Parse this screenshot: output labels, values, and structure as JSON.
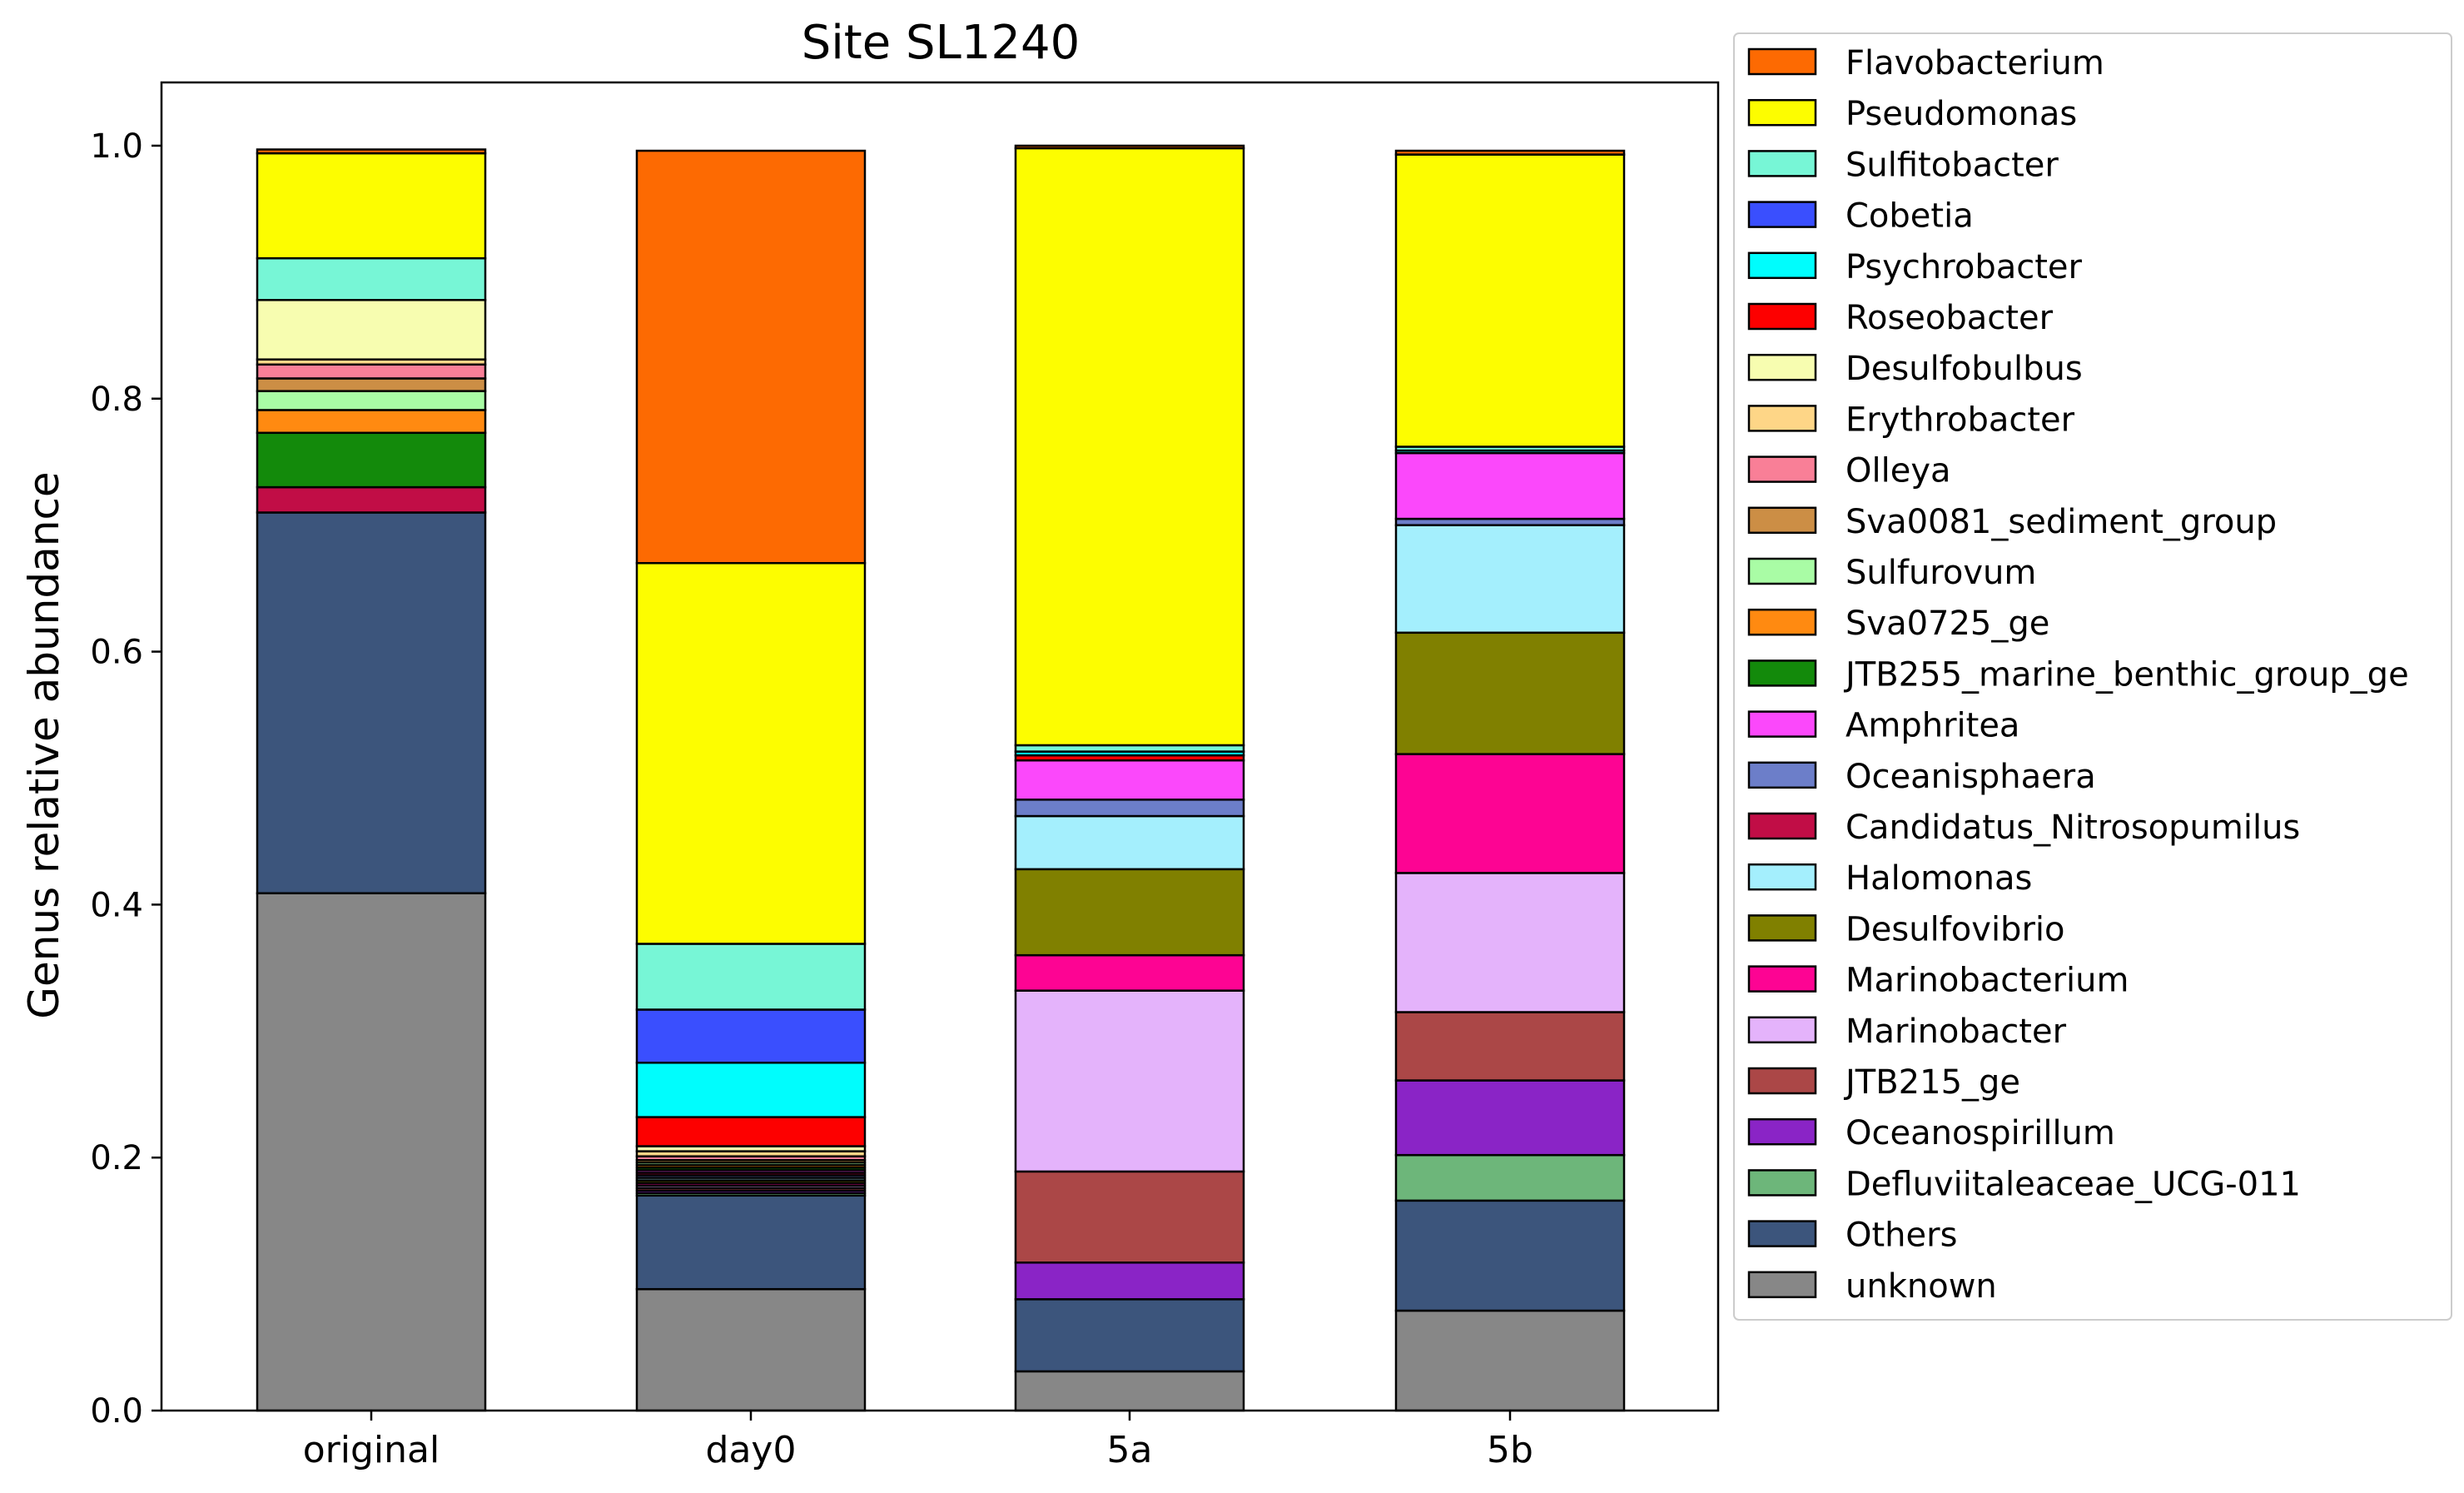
{
  "chart_data": {
    "type": "bar",
    "stacked": true,
    "title": "Site SL1240",
    "xlabel": "",
    "ylabel": "Genus relative abundance",
    "ylim": [
      0,
      1.05
    ],
    "yticks": [
      "0.0",
      "0.2",
      "0.4",
      "0.6",
      "0.8",
      "1.0"
    ],
    "categories": [
      "original",
      "day0",
      "5a",
      "5b"
    ],
    "legend_position": "outside-right",
    "grid": false,
    "series": [
      {
        "name": "unknown",
        "color": "#878787",
        "values": [
          0.409,
          0.096,
          0.031,
          0.079
        ]
      },
      {
        "name": "Others",
        "color": "#3c557c",
        "values": [
          0.301,
          0.074,
          0.057,
          0.087
        ]
      },
      {
        "name": "Defluviitaleaceae_UCG-011",
        "color": "#6db67a",
        "values": [
          0.0,
          0.002,
          0.0,
          0.036
        ]
      },
      {
        "name": "Oceanospirillum",
        "color": "#8a24c6",
        "values": [
          0.0,
          0.002,
          0.029,
          0.059
        ]
      },
      {
        "name": "JTB215_ge",
        "color": "#ab4747",
        "values": [
          0.0,
          0.002,
          0.072,
          0.054
        ]
      },
      {
        "name": "Marinobacter",
        "color": "#e4b3fb",
        "values": [
          0.0,
          0.002,
          0.143,
          0.11
        ]
      },
      {
        "name": "Marinobacterium",
        "color": "#fd0493",
        "values": [
          0.0,
          0.002,
          0.028,
          0.094
        ]
      },
      {
        "name": "Desulfovibrio",
        "color": "#808000",
        "values": [
          0.0,
          0.002,
          0.068,
          0.096
        ]
      },
      {
        "name": "Halomonas",
        "color": "#a4effd",
        "values": [
          0.0,
          0.002,
          0.042,
          0.085
        ]
      },
      {
        "name": "Oceanisphaera",
        "color": "#6c7ec9",
        "values": [
          0.0,
          0.002,
          0.013,
          0.005
        ]
      },
      {
        "name": "Candidatus_Nitrosopumilus",
        "color": "#c10d46",
        "values": [
          0.02,
          0.002,
          0.0,
          0.0
        ]
      },
      {
        "name": "Amphritea",
        "color": "#fb48fb",
        "values": [
          0.0,
          0.002,
          0.031,
          0.052
        ]
      },
      {
        "name": "JTB255_marine_benthic_group_ge",
        "color": "#138a0b",
        "values": [
          0.043,
          0.002,
          0.0,
          0.0
        ]
      },
      {
        "name": "Sva0725_ge",
        "color": "#ff8a11",
        "values": [
          0.018,
          0.002,
          0.0,
          0.0
        ]
      },
      {
        "name": "Sulfurovum",
        "color": "#a9fca5",
        "values": [
          0.015,
          0.002,
          0.0,
          0.0
        ]
      },
      {
        "name": "Sva0081_sediment_group",
        "color": "#cc8e45",
        "values": [
          0.01,
          0.002,
          0.0,
          0.0
        ]
      },
      {
        "name": "Olleya",
        "color": "#f97f97",
        "values": [
          0.011,
          0.003,
          0.0,
          0.0
        ]
      },
      {
        "name": "Erythrobacter",
        "color": "#fed687",
        "values": [
          0.004,
          0.004,
          0.0,
          0.0
        ]
      },
      {
        "name": "Desulfobulbus",
        "color": "#f7fdb0",
        "values": [
          0.047,
          0.004,
          0.0,
          0.0
        ]
      },
      {
        "name": "Roseobacter",
        "color": "#fd0000",
        "values": [
          0.0,
          0.023,
          0.004,
          0.0
        ]
      },
      {
        "name": "Psychrobacter",
        "color": "#00fdfd",
        "values": [
          0.0,
          0.043,
          0.003,
          0.002
        ]
      },
      {
        "name": "Cobetia",
        "color": "#3a4ffe",
        "values": [
          0.0,
          0.042,
          0.0,
          0.0
        ]
      },
      {
        "name": "Sulfitobacter",
        "color": "#77f6d6",
        "values": [
          0.033,
          0.052,
          0.005,
          0.003
        ]
      },
      {
        "name": "Pseudomonas",
        "color": "#fdfd00",
        "values": [
          0.083,
          0.301,
          0.472,
          0.231
        ]
      },
      {
        "name": "Flavobacterium",
        "color": "#fd6a02",
        "values": [
          0.003,
          0.326,
          0.002,
          0.003
        ]
      }
    ],
    "legend_order": [
      "Flavobacterium",
      "Pseudomonas",
      "Sulfitobacter",
      "Cobetia",
      "Psychrobacter",
      "Roseobacter",
      "Desulfobulbus",
      "Erythrobacter",
      "Olleya",
      "Sva0081_sediment_group",
      "Sulfurovum",
      "Sva0725_ge",
      "JTB255_marine_benthic_group_ge",
      "Amphritea",
      "Oceanisphaera",
      "Candidatus_Nitrosopumilus",
      "Halomonas",
      "Desulfovibrio",
      "Marinobacterium",
      "Marinobacter",
      "JTB215_ge",
      "Oceanospirillum",
      "Defluviitaleaceae_UCG-011",
      "Others",
      "unknown"
    ]
  }
}
